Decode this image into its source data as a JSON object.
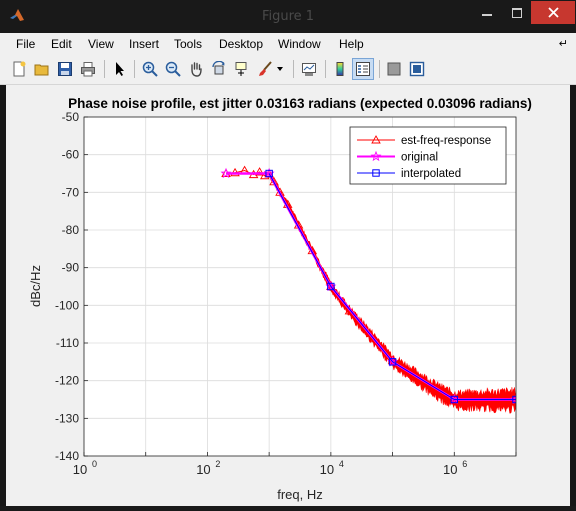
{
  "window": {
    "title": "Figure 1"
  },
  "menu": [
    "File",
    "Edit",
    "View",
    "Insert",
    "Tools",
    "Desktop",
    "Window",
    "Help"
  ],
  "toolbar": {
    "icons": [
      "new-figure-icon",
      "open-file-icon",
      "save-icon",
      "print-icon",
      "edit-plot-arrow-icon",
      "zoom-in-icon",
      "zoom-out-icon",
      "pan-hand-icon",
      "rotate-3d-icon",
      "data-cursor-icon",
      "brush-icon",
      "brush-dropdown-icon",
      "link-plot-icon",
      "insert-colorbar-icon",
      "insert-legend-icon",
      "hide-plot-tools-icon",
      "show-plot-tools-icon"
    ]
  },
  "chart_data": {
    "type": "line",
    "title": "Phase noise profile, est jitter 0.03163 radians (expected 0.03096 radians)",
    "xlabel": "freq, Hz",
    "ylabel": "dBc/Hz",
    "xscale": "log",
    "xlim": [
      1,
      10000000
    ],
    "ylim": [
      -140,
      -50
    ],
    "x_ticks": [
      {
        "value": 1,
        "base": "10",
        "exp": "0"
      },
      {
        "value": 100,
        "base": "10",
        "exp": "2"
      },
      {
        "value": 10000,
        "base": "10",
        "exp": "4"
      },
      {
        "value": 1000000,
        "base": "10",
        "exp": "6"
      }
    ],
    "y_ticks": [
      "-50",
      "-60",
      "-70",
      "-80",
      "-90",
      "-100",
      "-110",
      "-120",
      "-130",
      "-140"
    ],
    "grid": true,
    "legend_position": "top-right",
    "series": [
      {
        "name": "est-freq-response",
        "color": "#ff0000",
        "marker": "triangle",
        "x": [
          200,
          280,
          400,
          560,
          700,
          850,
          1000,
          1200,
          1500,
          2000,
          3000,
          5000,
          10000,
          20000,
          50000,
          100000,
          200000,
          500000,
          1000000,
          2000000,
          5000000,
          10000000
        ],
        "y": [
          -65.0,
          -64.8,
          -64.2,
          -65.3,
          -64.6,
          -65.6,
          -65.1,
          -67.2,
          -70.0,
          -73.2,
          -78.7,
          -85.5,
          -95.0,
          -101.5,
          -108.9,
          -114.6,
          -118.0,
          -122.4,
          -125.0,
          -125.0,
          -125.0,
          -125.0
        ]
      },
      {
        "name": "original",
        "color": "#ff00ff",
        "marker": "star",
        "x": [
          200,
          1000,
          10000,
          100000,
          1000000,
          10000000
        ],
        "y": [
          -65,
          -65,
          -95,
          -115,
          -125,
          -125
        ]
      },
      {
        "name": "interpolated",
        "color": "#0000ff",
        "marker": "square",
        "x": [
          1000,
          10000,
          100000,
          1000000,
          10000000
        ],
        "y": [
          -65,
          -95,
          -115,
          -125,
          -125
        ]
      }
    ]
  }
}
